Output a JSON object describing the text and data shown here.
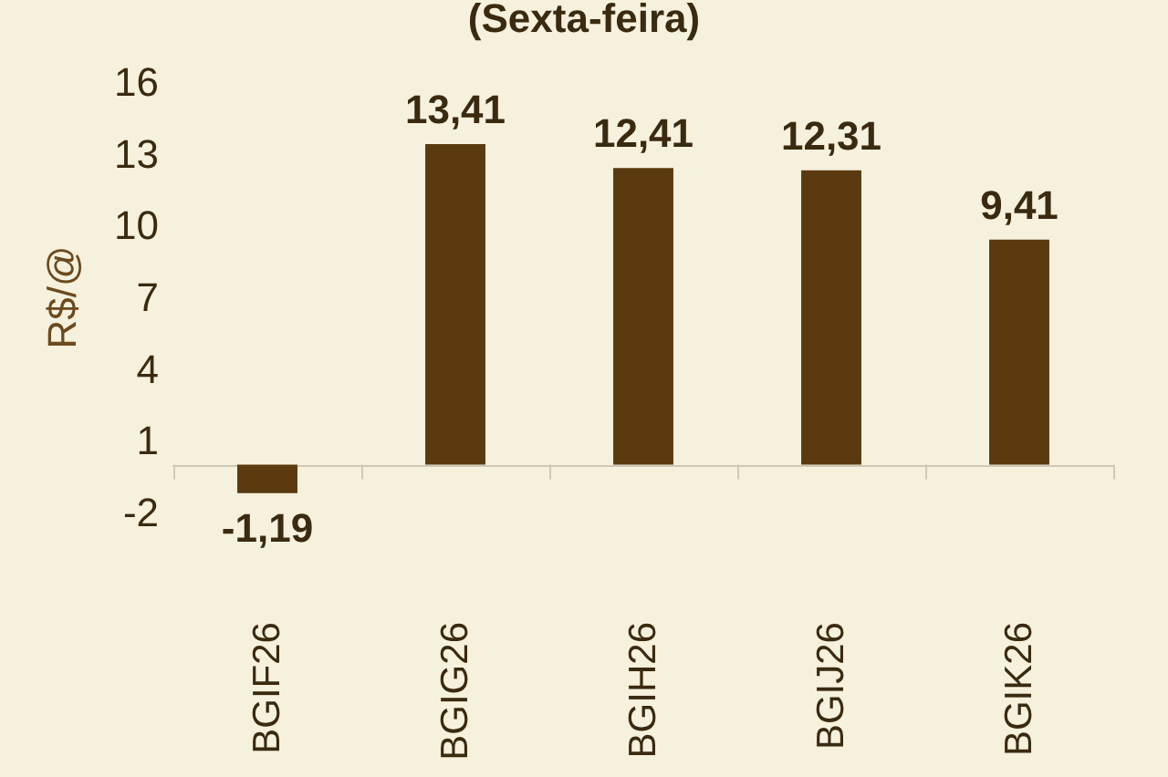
{
  "chart_data": {
    "type": "bar",
    "title": "(Sexta-feira)",
    "ylabel": "R$/@",
    "categories": [
      "BGIF26",
      "BGIG26",
      "BGIH26",
      "BGIJ26",
      "BGIK26"
    ],
    "values": [
      -1.19,
      13.41,
      12.41,
      12.31,
      9.41
    ],
    "value_labels": [
      "-1,19",
      "13,41",
      "12,41",
      "12,31",
      "9,41"
    ],
    "color": "#5a3a0e",
    "ylim": [
      -2,
      16
    ],
    "yticks": [
      -2,
      1,
      4,
      7,
      10,
      13,
      16
    ],
    "grid": false
  }
}
